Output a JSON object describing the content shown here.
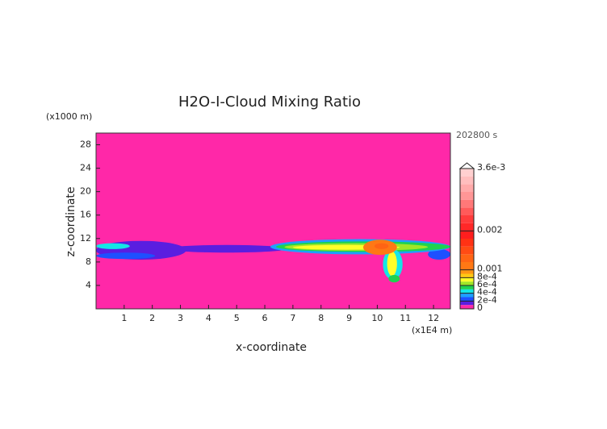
{
  "chart_data": {
    "type": "contour",
    "title": "H2O-I-Cloud Mixing Ratio",
    "x_label": "x-coordinate",
    "y_label": "z-coordinate",
    "x_unit": "(x1E4 m)",
    "y_unit": "(x1000 m)",
    "time_label": "202800 s",
    "xlim": [
      0,
      12.6
    ],
    "ylim": [
      0,
      30
    ],
    "xticks": [
      1,
      2,
      3,
      4,
      5,
      6,
      7,
      8,
      9,
      10,
      11,
      12
    ],
    "yticks": [
      4,
      8,
      12,
      16,
      20,
      24,
      28
    ],
    "colorbar": {
      "levels": [
        0,
        0.0001,
        0.0002,
        0.0003,
        0.0004,
        0.0005,
        0.0006,
        0.0007,
        0.0008,
        0.0009,
        0.001,
        0.0012,
        0.0014,
        0.0016,
        0.0018,
        0.002,
        0.0022,
        0.0024,
        0.0026,
        0.0028,
        0.003,
        0.0032,
        0.0034,
        0.0036
      ],
      "colors": [
        "#ff28a8",
        "#5a1ee0",
        "#1e50ff",
        "#1ea0ff",
        "#14e6e6",
        "#1ed250",
        "#a0e628",
        "#ffff28",
        "#ffc814",
        "#ff9614",
        "#ff7814",
        "#ff6414",
        "#ff4b14",
        "#ff3214",
        "#ff1e1e",
        "#ff2828",
        "#ff3c3c",
        "#ff5a5a",
        "#ff7878",
        "#ff9696",
        "#ffaaaa",
        "#ffbebe",
        "#ffd0d0"
      ],
      "ticks": [
        {
          "value": 0.0036,
          "label": "3.6e-3"
        },
        0.002,
        0.001,
        {
          "value": 0.0008,
          "label": "8e-4"
        },
        {
          "value": 0.0006,
          "label": "6e-4"
        },
        {
          "value": 0.0004,
          "label": "4e-4"
        },
        {
          "value": 0.0002,
          "label": "2e-4"
        },
        0
      ]
    },
    "blobs": [
      {
        "x": [
          0,
          3.2
        ],
        "z": [
          8.4,
          11.6
        ],
        "value": 0.00015
      },
      {
        "x": [
          2.5,
          6.8
        ],
        "z": [
          9.6,
          10.9
        ],
        "value": 0.00015
      },
      {
        "x": [
          0,
          2.1
        ],
        "z": [
          8.5,
          9.6
        ],
        "value": 0.00025
      },
      {
        "x": [
          0,
          1.2
        ],
        "z": [
          10.2,
          11.2
        ],
        "value": 0.00045
      },
      {
        "x": [
          11.8,
          12.6
        ],
        "z": [
          8.4,
          10.2
        ],
        "value": 0.00025
      },
      {
        "x": [
          6.2,
          12.6
        ],
        "z": [
          9.3,
          11.9
        ],
        "value": 0.00035
      },
      {
        "x": [
          6.4,
          12.6
        ],
        "z": [
          9.7,
          11.5
        ],
        "value": 0.00055
      },
      {
        "x": [
          6.7,
          11.8
        ],
        "z": [
          9.9,
          11.2
        ],
        "value": 0.00065
      },
      {
        "x": [
          7.0,
          10.8
        ],
        "z": [
          10.1,
          10.9
        ],
        "value": 0.00075
      },
      {
        "x": [
          10.2,
          10.9
        ],
        "z": [
          5.0,
          10.2
        ],
        "value": 0.00045
      },
      {
        "x": [
          10.35,
          10.7
        ],
        "z": [
          5.6,
          9.8
        ],
        "value": 0.00075
      },
      {
        "x": [
          10.4,
          10.8
        ],
        "z": [
          4.5,
          5.8
        ],
        "value": 0.00055
      },
      {
        "x": [
          9.5,
          10.7
        ],
        "z": [
          9.2,
          11.8
        ],
        "value": 0.00105
      },
      {
        "x": [
          9.9,
          10.4
        ],
        "z": [
          10.2,
          11.2
        ],
        "value": 0.0013
      }
    ]
  }
}
